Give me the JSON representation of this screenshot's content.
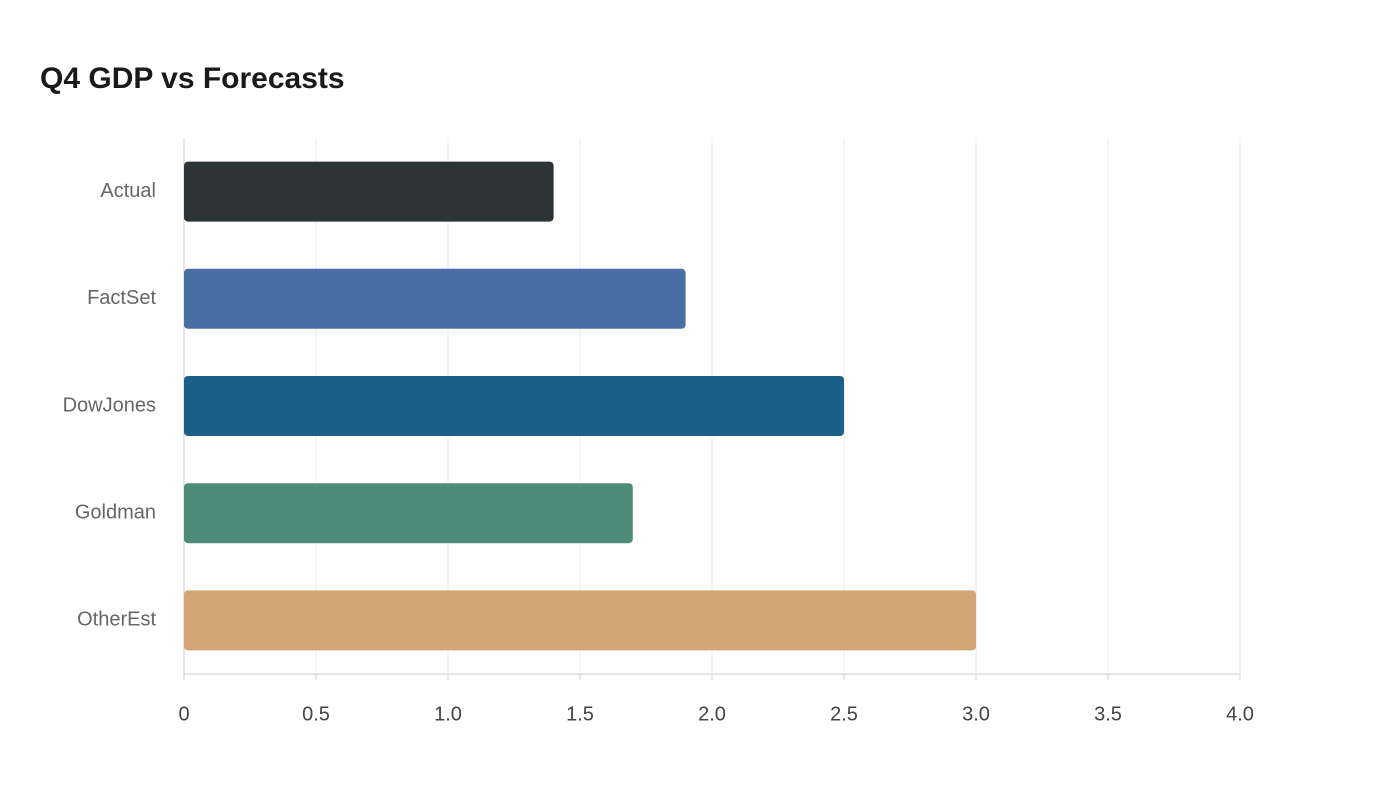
{
  "chart_data": {
    "type": "hbar",
    "title": "Q4 GDP vs Forecasts",
    "categories": [
      "Actual",
      "FactSet",
      "DowJones",
      "Goldman",
      "OtherEst"
    ],
    "values": [
      1.4,
      1.9,
      2.5,
      1.7,
      3.0
    ],
    "colors": [
      "#2d3436",
      "#4a6fa5",
      "#1a6089",
      "#4e8c7a",
      "#d4a574"
    ],
    "xlim": [
      0,
      4
    ],
    "xticks": [
      0,
      0.5,
      {
        "value": 1,
        "label": "1.0"
      },
      1.5,
      {
        "value": 2,
        "label": "2.0"
      },
      2.5,
      {
        "value": 3,
        "label": "3.0"
      },
      3.5,
      {
        "value": 4,
        "label": "4.0"
      }
    ],
    "grid": true
  }
}
